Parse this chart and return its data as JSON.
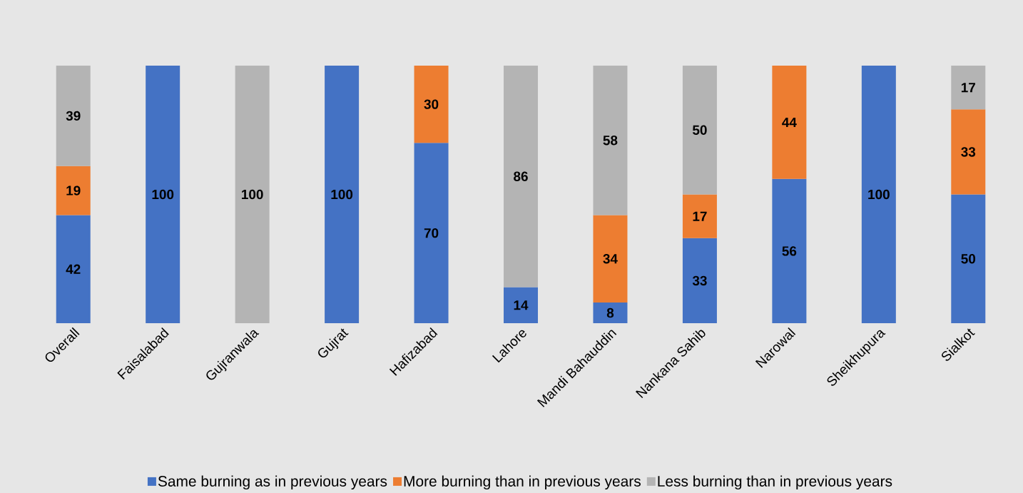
{
  "chart_data": {
    "type": "bar",
    "stacked": true,
    "data_labels": true,
    "legend": "bottom",
    "categories": [
      "Overall",
      "Faisalabad",
      "Gujranwala",
      "Gujrat",
      "Hafizabad",
      "Lahore",
      "Mandi Bahauddin",
      "Nankana Sahib",
      "Narowal",
      "Sheikhupura",
      "Sialkot"
    ],
    "series": [
      {
        "name": "Same burning as in previous years",
        "color": "#4472c4",
        "values": [
          42,
          100,
          null,
          100,
          70,
          14,
          8,
          33,
          56,
          100,
          50
        ]
      },
      {
        "name": "More burning than in previous years",
        "color": "#ed7d31",
        "values": [
          19,
          null,
          null,
          null,
          30,
          null,
          34,
          17,
          44,
          null,
          33
        ]
      },
      {
        "name": "Less burning than in previous years",
        "color": "#b4b4b4",
        "values": [
          39,
          null,
          100,
          null,
          null,
          86,
          58,
          50,
          null,
          null,
          17
        ]
      }
    ]
  }
}
